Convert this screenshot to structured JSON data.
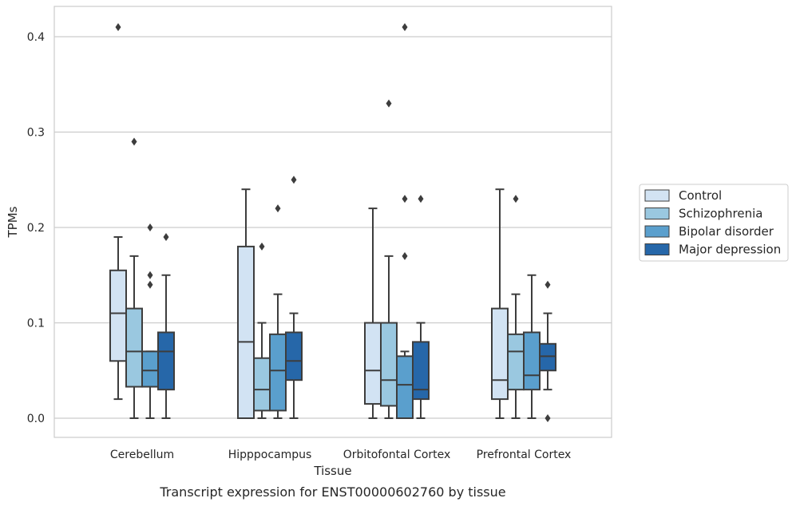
{
  "chart_data": {
    "type": "box",
    "xlabel": "Tissue",
    "ylabel": "TPMs",
    "caption": "Transcript expression for ENST00000602760 by tissue",
    "ylim": [
      -0.02,
      0.432
    ],
    "yticks": [
      0.0,
      0.1,
      0.2,
      0.3,
      0.4
    ],
    "ytick_labels": [
      "0.0",
      "0.1",
      "0.2",
      "0.3",
      "0.4"
    ],
    "grid": "horizontal",
    "legend_position": "right",
    "categories": [
      "Cerebellum",
      "Hipppocampus",
      "Orbitofontal Cortex",
      "Prefrontal Cortex"
    ],
    "series": [
      {
        "name": "Control",
        "color": "#d2e3f3",
        "boxes": [
          {
            "whislo": 0.02,
            "q1": 0.06,
            "med": 0.11,
            "q3": 0.155,
            "whishi": 0.19,
            "fliers": [
              0.41
            ]
          },
          {
            "whislo": 0.0,
            "q1": 0.0,
            "med": 0.08,
            "q3": 0.18,
            "whishi": 0.24,
            "fliers": []
          },
          {
            "whislo": 0.0,
            "q1": 0.015,
            "med": 0.05,
            "q3": 0.1,
            "whishi": 0.22,
            "fliers": []
          },
          {
            "whislo": 0.0,
            "q1": 0.02,
            "med": 0.04,
            "q3": 0.115,
            "whishi": 0.24,
            "fliers": []
          }
        ]
      },
      {
        "name": "Schizophrenia",
        "color": "#9ac8e0",
        "boxes": [
          {
            "whislo": 0.0,
            "q1": 0.033,
            "med": 0.07,
            "q3": 0.115,
            "whishi": 0.17,
            "fliers": [
              0.29
            ]
          },
          {
            "whislo": 0.0,
            "q1": 0.008,
            "med": 0.03,
            "q3": 0.063,
            "whishi": 0.1,
            "fliers": [
              0.18
            ]
          },
          {
            "whislo": 0.0,
            "q1": 0.013,
            "med": 0.04,
            "q3": 0.1,
            "whishi": 0.17,
            "fliers": [
              0.33
            ]
          },
          {
            "whislo": 0.0,
            "q1": 0.03,
            "med": 0.07,
            "q3": 0.088,
            "whishi": 0.13,
            "fliers": [
              0.23
            ]
          }
        ]
      },
      {
        "name": "Bipolar disorder",
        "color": "#5a9fcd",
        "boxes": [
          {
            "whislo": 0.0,
            "q1": 0.033,
            "med": 0.05,
            "q3": 0.07,
            "whishi": 0.07,
            "fliers": [
              0.14,
              0.15,
              0.2
            ]
          },
          {
            "whislo": 0.0,
            "q1": 0.008,
            "med": 0.05,
            "q3": 0.088,
            "whishi": 0.13,
            "fliers": [
              0.22
            ]
          },
          {
            "whislo": 0.0,
            "q1": 0.0,
            "med": 0.035,
            "q3": 0.065,
            "whishi": 0.07,
            "fliers": [
              0.17,
              0.23,
              0.41
            ]
          },
          {
            "whislo": 0.0,
            "q1": 0.03,
            "med": 0.045,
            "q3": 0.09,
            "whishi": 0.15,
            "fliers": []
          }
        ]
      },
      {
        "name": "Major depression",
        "color": "#2667a9",
        "boxes": [
          {
            "whislo": 0.0,
            "q1": 0.03,
            "med": 0.07,
            "q3": 0.09,
            "whishi": 0.15,
            "fliers": [
              0.19
            ]
          },
          {
            "whislo": 0.0,
            "q1": 0.04,
            "med": 0.06,
            "q3": 0.09,
            "whishi": 0.11,
            "fliers": [
              0.25
            ]
          },
          {
            "whislo": 0.0,
            "q1": 0.02,
            "med": 0.03,
            "q3": 0.08,
            "whishi": 0.1,
            "fliers": [
              0.23
            ]
          },
          {
            "whislo": 0.03,
            "q1": 0.05,
            "med": 0.065,
            "q3": 0.078,
            "whishi": 0.11,
            "fliers": [
              0.0,
              0.14
            ]
          }
        ]
      }
    ]
  }
}
